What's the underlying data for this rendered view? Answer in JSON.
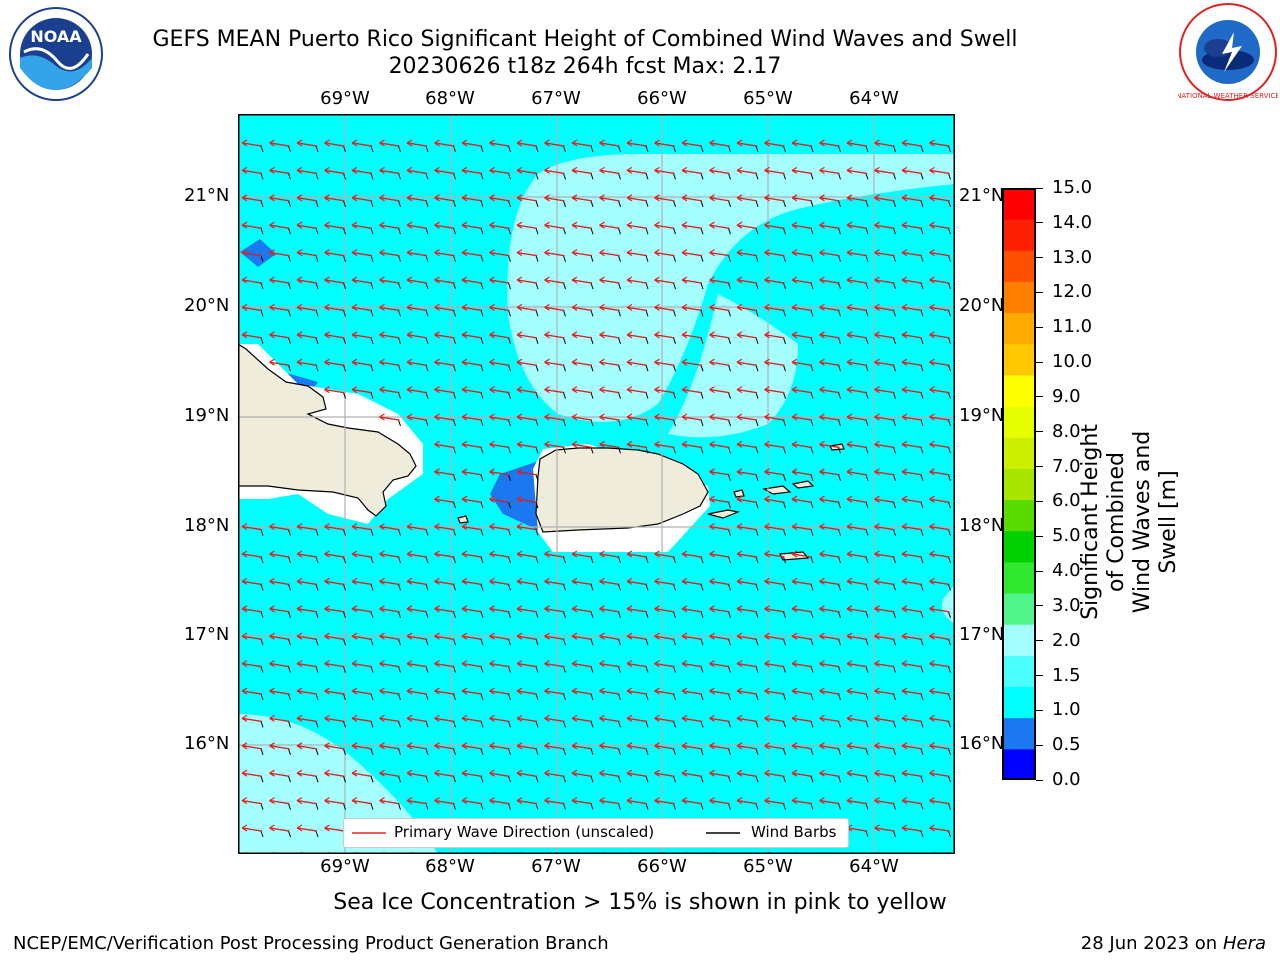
{
  "header": {
    "title_line1": "GEFS MEAN Puerto Rico Significant Height of Combined Wind Waves and Swell",
    "title_line2": "20230626 t18z 264h fcst   Max: 2.17"
  },
  "logos": {
    "noaa_text": "NOAA",
    "nws_text": "NATIONAL WEATHER SERVICE"
  },
  "map": {
    "lon_labels": [
      "69°W",
      "68°W",
      "67°W",
      "66°W",
      "65°W",
      "64°W"
    ],
    "lat_labels": [
      "21°N",
      "20°N",
      "19°N",
      "18°N",
      "17°N",
      "16°N"
    ],
    "colors": {
      "ocean_main": "#00ffff",
      "ocean_light": "#a6ffff",
      "ocean_dark": "#1c78f0",
      "land": "#efecdc",
      "grid": "#b0b0b0",
      "wave_arrow": "#e8201e",
      "barb": "#000000"
    }
  },
  "legend": {
    "wave_label": "Primary Wave Direction (unscaled)",
    "barb_label": "Wind Barbs"
  },
  "colorbar": {
    "label_line1": "Significant Height of Combined",
    "label_line2": "Wind Waves and Swell [m]",
    "ticks": [
      "15.0",
      "14.0",
      "13.0",
      "12.0",
      "11.0",
      "10.0",
      "9.0",
      "8.0",
      "7.0",
      "6.0",
      "5.0",
      "4.0",
      "3.0",
      "2.0",
      "1.5",
      "1.0",
      "0.5",
      "0.0"
    ],
    "colors": [
      "#0000ff",
      "#1c78f0",
      "#00ffff",
      "#4cffff",
      "#a6ffff",
      "#52f58c",
      "#30e830",
      "#00d200",
      "#58dc00",
      "#a8e600",
      "#ccf000",
      "#e6ff00",
      "#ffff00",
      "#ffc800",
      "#ffaa00",
      "#ff8000",
      "#ff5000",
      "#ff2000",
      "#ff0000"
    ]
  },
  "subtitle": "Sea Ice Concentration > 15% is shown in pink to yellow",
  "footer": {
    "left": "NCEP/EMC/Verification Post Processing Product Generation Branch",
    "right_date": "28 Jun 2023 on",
    "right_host": "Hera"
  }
}
